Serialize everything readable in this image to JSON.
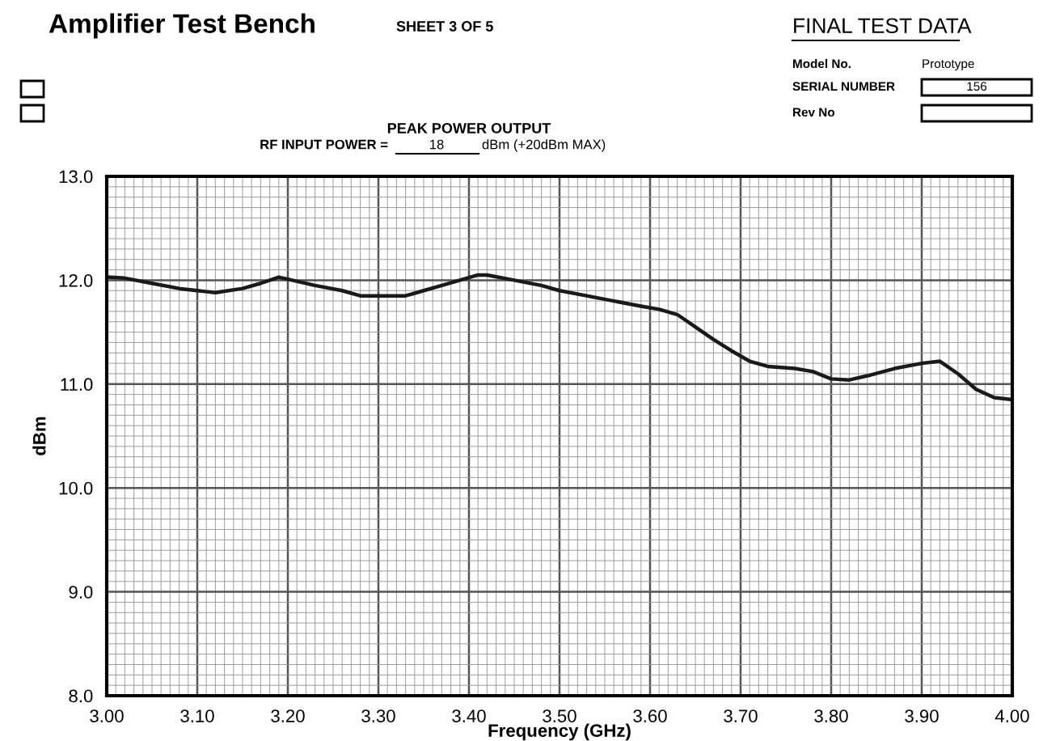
{
  "chart_data": {
    "type": "line",
    "title": "Amplifier Test Bench",
    "subtitle": "PEAK POWER OUTPUT",
    "xlabel": "Frequency (GHz)",
    "ylabel": "dBm",
    "annotations": [
      "SHEET 3 OF 5",
      "FINAL TEST DATA",
      "Model No.",
      "Prototype",
      "SERIAL NUMBER",
      "156",
      "Rev No",
      "RF INPUT POWER =",
      "18",
      "dBm (+20dBm MAX)"
    ],
    "series": [
      {
        "color": "#1a1a1a",
        "x": [
          3.0,
          3.02,
          3.05,
          3.08,
          3.1,
          3.12,
          3.15,
          3.17,
          3.19,
          3.2,
          3.23,
          3.26,
          3.28,
          3.31,
          3.33,
          3.35,
          3.37,
          3.39,
          3.41,
          3.42,
          3.45,
          3.48,
          3.5,
          3.53,
          3.56,
          3.59,
          3.61,
          3.63,
          3.65,
          3.67,
          3.69,
          3.71,
          3.73,
          3.76,
          3.78,
          3.8,
          3.82,
          3.84,
          3.87,
          3.9,
          3.92,
          3.94,
          3.96,
          3.98,
          4.0
        ],
        "values": [
          12.03,
          12.02,
          11.97,
          11.92,
          11.9,
          11.88,
          11.92,
          11.97,
          12.03,
          12.01,
          11.95,
          11.9,
          11.85,
          11.85,
          11.85,
          11.9,
          11.95,
          12.0,
          12.05,
          12.05,
          12.0,
          11.95,
          11.9,
          11.85,
          11.8,
          11.75,
          11.72,
          11.67,
          11.55,
          11.43,
          11.32,
          11.22,
          11.17,
          11.15,
          11.12,
          11.05,
          11.04,
          11.08,
          11.15,
          11.2,
          11.22,
          11.1,
          10.95,
          10.87,
          10.85
        ]
      }
    ],
    "xlim": [
      3.0,
      4.0
    ],
    "ylim": [
      8.0,
      13.0
    ],
    "xticks": [
      {
        "value": 3.0,
        "label": "3.00"
      },
      {
        "value": 3.1,
        "label": "3.10"
      },
      {
        "value": 3.2,
        "label": "3.20"
      },
      {
        "value": 3.3,
        "label": "3.30"
      },
      {
        "value": 3.4,
        "label": "3.40"
      },
      {
        "value": 3.5,
        "label": "3.50"
      },
      {
        "value": 3.6,
        "label": "3.60"
      },
      {
        "value": 3.7,
        "label": "3.70"
      },
      {
        "value": 3.8,
        "label": "3.80"
      },
      {
        "value": 3.9,
        "label": "3.90"
      },
      {
        "value": 4.0,
        "label": "4.00"
      }
    ],
    "yticks": [
      {
        "value": 8,
        "label": "8.0"
      },
      {
        "value": 9,
        "label": "9.0"
      },
      {
        "value": 10,
        "label": "10.0"
      },
      {
        "value": 11,
        "label": "11.0"
      },
      {
        "value": 12,
        "label": "12.0"
      },
      {
        "value": 13,
        "label": "13.0"
      }
    ],
    "grid": true,
    "marker": "none",
    "line_style": "solid",
    "legend": false
  }
}
